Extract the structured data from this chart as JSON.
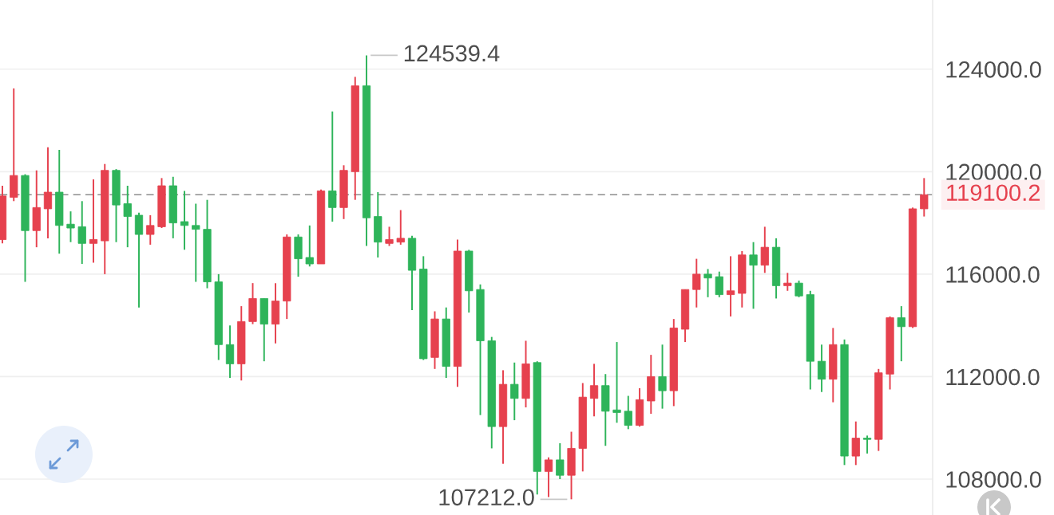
{
  "chart_data": {
    "type": "candlestick",
    "categories": [
      null,
      null,
      null,
      null,
      null,
      null,
      null,
      null,
      null,
      null,
      null,
      null,
      null,
      null,
      null,
      null,
      null,
      null,
      null,
      null,
      null,
      null,
      null,
      null,
      null,
      null,
      null,
      null,
      null,
      null,
      null,
      null,
      null,
      null,
      null,
      null,
      null,
      null,
      null,
      null,
      null,
      null,
      null,
      null,
      null,
      null,
      null,
      null,
      null,
      null,
      null,
      null,
      null,
      null,
      null,
      null,
      null,
      null,
      null,
      null,
      null,
      null,
      null,
      null,
      null,
      null,
      null,
      null,
      null,
      null,
      null,
      null,
      null,
      null,
      null,
      null,
      null,
      null,
      null,
      null,
      null,
      null
    ],
    "ohlc": [
      [
        117350,
        119450,
        117200,
        119050
      ],
      [
        119000,
        123250,
        118850,
        119850
      ],
      [
        119850,
        119900,
        115700,
        117700
      ],
      [
        117700,
        120050,
        117050,
        118600
      ],
      [
        118550,
        120950,
        117400,
        119200
      ],
      [
        119200,
        120850,
        116800,
        117900
      ],
      [
        117950,
        118450,
        117250,
        117800
      ],
      [
        117850,
        118850,
        116400,
        117200
      ],
      [
        117200,
        119700,
        116450,
        117350
      ],
      [
        117300,
        120300,
        116000,
        120050
      ],
      [
        120050,
        120100,
        117250,
        118700
      ],
      [
        118750,
        119450,
        117050,
        118250
      ],
      [
        118300,
        118400,
        114700,
        117550
      ],
      [
        117550,
        118300,
        117150,
        117900
      ],
      [
        117850,
        119750,
        117800,
        119450
      ],
      [
        119450,
        119800,
        117400,
        118000
      ],
      [
        118050,
        119250,
        116950,
        117900
      ],
      [
        117900,
        118750,
        115700,
        117750
      ],
      [
        117750,
        118900,
        115450,
        115700
      ],
      [
        115700,
        116000,
        112650,
        113250
      ],
      [
        113250,
        114000,
        111950,
        112500
      ],
      [
        112500,
        114750,
        111850,
        114150
      ],
      [
        114150,
        115650,
        114050,
        115050
      ],
      [
        115050,
        115050,
        112600,
        114050
      ],
      [
        114050,
        115650,
        113300,
        114950
      ],
      [
        114950,
        117550,
        114250,
        117450
      ],
      [
        117450,
        117550,
        115900,
        116600
      ],
      [
        116650,
        117900,
        116300,
        116400
      ],
      [
        116400,
        119300,
        116400,
        119250
      ],
      [
        119250,
        122350,
        118050,
        118600
      ],
      [
        118600,
        120250,
        118150,
        120050
      ],
      [
        120000,
        123700,
        118900,
        123350
      ],
      [
        123350,
        124539.4,
        117100,
        118200
      ],
      [
        118250,
        119200,
        116650,
        117250
      ],
      [
        117200,
        117850,
        117100,
        117350
      ],
      [
        117250,
        118500,
        117150,
        117400
      ],
      [
        117400,
        117500,
        114600,
        116150
      ],
      [
        116200,
        116700,
        112650,
        112700
      ],
      [
        112750,
        114550,
        112300,
        114250
      ],
      [
        114250,
        114700,
        111950,
        112400
      ],
      [
        112400,
        117350,
        111600,
        116900
      ],
      [
        116900,
        116950,
        114500,
        115350
      ],
      [
        115400,
        115600,
        110500,
        113400
      ],
      [
        113400,
        113550,
        109200,
        110050
      ],
      [
        110050,
        112250,
        108600,
        111700
      ],
      [
        111700,
        112550,
        110300,
        111150
      ],
      [
        111150,
        113400,
        110800,
        112500
      ],
      [
        112550,
        112600,
        107400,
        108300
      ],
      [
        108300,
        108850,
        107300,
        108750
      ],
      [
        108750,
        109400,
        108000,
        108150
      ],
      [
        108150,
        109850,
        107212.0,
        109200
      ],
      [
        109200,
        111750,
        108300,
        111200
      ],
      [
        111150,
        112500,
        110450,
        111650
      ],
      [
        111650,
        112100,
        109300,
        110650
      ],
      [
        110700,
        113350,
        110200,
        110600
      ],
      [
        110650,
        111250,
        109950,
        110100
      ],
      [
        110100,
        111550,
        110050,
        111100
      ],
      [
        111050,
        112850,
        110550,
        112000
      ],
      [
        112000,
        113250,
        110750,
        111450
      ],
      [
        111450,
        114250,
        110850,
        113900
      ],
      [
        113850,
        115400,
        113350,
        115400
      ],
      [
        115400,
        116600,
        114700,
        116000
      ],
      [
        116000,
        116200,
        115100,
        115850
      ],
      [
        115900,
        116100,
        115100,
        115200
      ],
      [
        115200,
        116700,
        114350,
        115350
      ],
      [
        115250,
        116900,
        114700,
        116750
      ],
      [
        116750,
        117250,
        114650,
        116350
      ],
      [
        116350,
        117850,
        116050,
        117050
      ],
      [
        117050,
        117400,
        115050,
        115550
      ],
      [
        115550,
        116050,
        115350,
        115650
      ],
      [
        115650,
        115750,
        115100,
        115150
      ],
      [
        115200,
        115350,
        111500,
        112600
      ],
      [
        112600,
        113250,
        111400,
        111900
      ],
      [
        111900,
        113900,
        111000,
        113250
      ],
      [
        113250,
        113450,
        108550,
        108900
      ],
      [
        108900,
        110250,
        108550,
        109600
      ],
      [
        109600,
        109700,
        109000,
        109550
      ],
      [
        109550,
        112300,
        109100,
        112150
      ],
      [
        112100,
        114350,
        111500,
        114300
      ],
      [
        114300,
        114750,
        112600,
        113950
      ],
      [
        113950,
        118600,
        113900,
        118550
      ],
      [
        118550,
        119750,
        118250,
        119100.2
      ]
    ],
    "colors": [
      "#e6414e",
      "#e6414e",
      "#2eb45a",
      "#e6414e",
      "#e6414e",
      "#2eb45a",
      "#2eb45a",
      "#2eb45a",
      "#e6414e",
      "#e6414e",
      "#2eb45a",
      "#2eb45a",
      "#2eb45a",
      "#e6414e",
      "#e6414e",
      "#2eb45a",
      "#2eb45a",
      "#2eb45a",
      "#2eb45a",
      "#2eb45a",
      "#2eb45a",
      "#e6414e",
      "#e6414e",
      "#2eb45a",
      "#e6414e",
      "#e6414e",
      "#2eb45a",
      "#2eb45a",
      "#e6414e",
      "#2eb45a",
      "#e6414e",
      "#e6414e",
      "#2eb45a",
      "#2eb45a",
      "#e6414e",
      "#e6414e",
      "#2eb45a",
      "#2eb45a",
      "#e6414e",
      "#2eb45a",
      "#e6414e",
      "#2eb45a",
      "#2eb45a",
      "#2eb45a",
      "#e6414e",
      "#2eb45a",
      "#e6414e",
      "#2eb45a",
      "#e6414e",
      "#2eb45a",
      "#e6414e",
      "#e6414e",
      "#e6414e",
      "#2eb45a",
      "#2eb45a",
      "#2eb45a",
      "#e6414e",
      "#e6414e",
      "#2eb45a",
      "#e6414e",
      "#e6414e",
      "#e6414e",
      "#2eb45a",
      "#2eb45a",
      "#e6414e",
      "#e6414e",
      "#2eb45a",
      "#e6414e",
      "#2eb45a",
      "#e6414e",
      "#2eb45a",
      "#2eb45a",
      "#2eb45a",
      "#e6414e",
      "#2eb45a",
      "#e6414e",
      "#2eb45a",
      "#e6414e",
      "#e6414e",
      "#2eb45a",
      "#e6414e",
      "#e6414e"
    ],
    "ylim": [
      106600,
      126700
    ],
    "yticks": [
      {
        "value": 108000,
        "label": "108000.0"
      },
      {
        "value": 112000,
        "label": "112000.0"
      },
      {
        "value": 116000,
        "label": "116000.0"
      },
      {
        "value": 120000,
        "label": "120000.0"
      },
      {
        "value": 124000,
        "label": "124000.0"
      }
    ],
    "grid": "y",
    "tick_labels": "y",
    "ref_lines": [
      {
        "axis": "y",
        "value": 119100.2,
        "label": "119100.2",
        "color": "#8c8c8c",
        "line_style": "dashed"
      }
    ],
    "annotations": [
      "124539.4",
      "107212.0"
    ]
  }
}
